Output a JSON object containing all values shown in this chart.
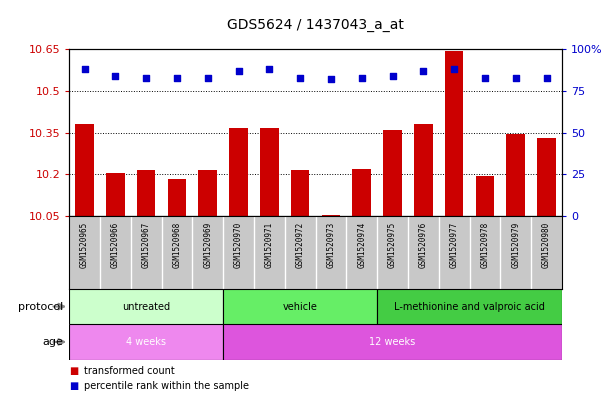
{
  "title": "GDS5624 / 1437043_a_at",
  "samples": [
    "GSM1520965",
    "GSM1520966",
    "GSM1520967",
    "GSM1520968",
    "GSM1520969",
    "GSM1520970",
    "GSM1520971",
    "GSM1520972",
    "GSM1520973",
    "GSM1520974",
    "GSM1520975",
    "GSM1520976",
    "GSM1520977",
    "GSM1520978",
    "GSM1520979",
    "GSM1520980"
  ],
  "bar_values": [
    10.38,
    10.205,
    10.215,
    10.185,
    10.215,
    10.365,
    10.365,
    10.215,
    10.055,
    10.22,
    10.36,
    10.38,
    10.645,
    10.195,
    10.345,
    10.33
  ],
  "dot_values": [
    88,
    84,
    83,
    83,
    83,
    87,
    88,
    83,
    82,
    83,
    84,
    87,
    88,
    83,
    83,
    83
  ],
  "ylim_left": [
    10.05,
    10.65
  ],
  "ylim_right": [
    0,
    100
  ],
  "yticks_left": [
    10.05,
    10.2,
    10.35,
    10.5,
    10.65
  ],
  "yticks_right": [
    0,
    25,
    50,
    75,
    100
  ],
  "ytick_labels_left": [
    "10.05",
    "10.2",
    "10.35",
    "10.5",
    "10.65"
  ],
  "ytick_labels_right": [
    "0",
    "25",
    "50",
    "75",
    "100%"
  ],
  "bar_color": "#cc0000",
  "dot_color": "#0000cc",
  "bar_bottom": 10.05,
  "protocol_groups": [
    {
      "label": "untreated",
      "start": 0,
      "end": 5,
      "color": "#ccffcc"
    },
    {
      "label": "vehicle",
      "start": 5,
      "end": 10,
      "color": "#66ee66"
    },
    {
      "label": "L-methionine and valproic acid",
      "start": 10,
      "end": 16,
      "color": "#44cc44"
    }
  ],
  "age_groups": [
    {
      "label": "4 weeks",
      "start": 0,
      "end": 5,
      "color": "#ee88ee"
    },
    {
      "label": "12 weeks",
      "start": 5,
      "end": 16,
      "color": "#dd55dd"
    }
  ],
  "protocol_label": "protocol",
  "age_label": "age",
  "legend_items": [
    {
      "color": "#cc0000",
      "label": "transformed count"
    },
    {
      "color": "#0000cc",
      "label": "percentile rank within the sample"
    }
  ],
  "sample_label_bg": "#c8c8c8",
  "plot_bg": "#ffffff"
}
